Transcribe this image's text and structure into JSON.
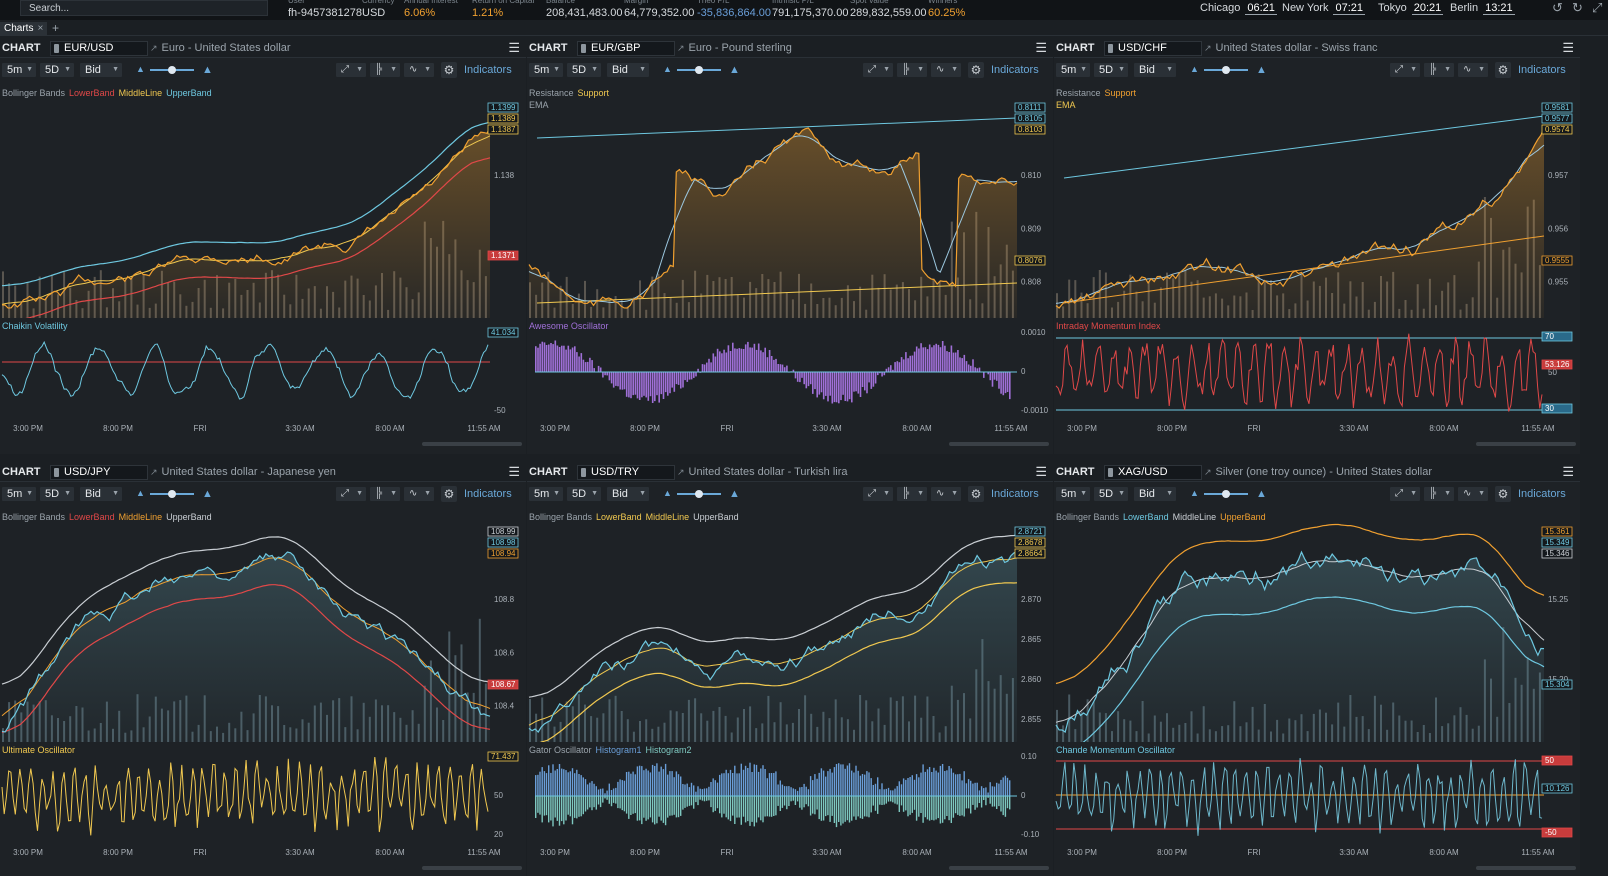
{
  "topbar": {
    "search_placeholder": "Search...",
    "stats": [
      {
        "label": "User",
        "value": "fh-9457381278",
        "color": "white"
      },
      {
        "label": "Currency",
        "value": "USD",
        "color": "white"
      },
      {
        "label": "Annual Interest",
        "value": "6.06%",
        "color": "orange"
      },
      {
        "label": "Return on Capital",
        "value": "1.21%",
        "color": "orange"
      },
      {
        "label": "Balance",
        "value": "208,431,483.00",
        "color": "white"
      },
      {
        "label": "Margin",
        "value": "64,779,352.00",
        "color": "white"
      },
      {
        "label": "Theo P/L",
        "value": "-35,836,864.00",
        "color": "blue"
      },
      {
        "label": "Intrinsic P/L",
        "value": "791,175,370.00",
        "color": "white"
      },
      {
        "label": "Spot Value",
        "value": "289,832,559.00",
        "color": "white"
      },
      {
        "label": "Winners",
        "value": "60.25%",
        "color": "orange"
      }
    ],
    "clocks": [
      {
        "city": "Chicago",
        "time": "06:21"
      },
      {
        "city": "New York",
        "time": "07:21"
      },
      {
        "city": "Tokyo",
        "time": "20:21"
      },
      {
        "city": "Berlin",
        "time": "13:21"
      }
    ],
    "icons": [
      "undo-icon",
      "refresh-icon",
      "expand-icon"
    ]
  },
  "tabs": [
    {
      "label": "Charts"
    }
  ],
  "colors": {
    "orange": "#f0a030",
    "blue": "#6ec8e0",
    "red": "#e04848",
    "yellow": "#f0c850",
    "purple": "#a070d8",
    "green": "#7ec8c0"
  },
  "panels": [
    {
      "chart_label": "CHART",
      "symbol": "EUR/USD",
      "description": "Euro - United States dollar",
      "interval": "5m",
      "range": "5D",
      "price_type": "Bid",
      "indicators_label": "Indicators",
      "main_legend": [
        {
          "text": "Bollinger Bands",
          "color": "#9aa3ab"
        },
        {
          "text": "LowerBand",
          "color": "#e04848"
        },
        {
          "text": "MiddleLine",
          "color": "#f0c850"
        },
        {
          "text": "UpperBand",
          "color": "#6ec8e0"
        }
      ],
      "main_legend2": [],
      "sub_title": "Chaikin Volatility",
      "sub_title_color": "#6ec8e0",
      "main_yticks": [
        "1.138"
      ],
      "main_tags": [
        {
          "text": "1.1399",
          "color": "#6ec8e0"
        },
        {
          "text": "1.1389",
          "color": "#f0c850"
        },
        {
          "text": "1.1387",
          "color": "#f0c850"
        },
        {
          "text": "1.1371",
          "color": "#e04848"
        }
      ],
      "sub_yticks": [
        "0",
        "-50"
      ],
      "sub_tags": [
        {
          "text": "41.034",
          "color": "#6ec8e0"
        }
      ],
      "x_labels": [
        "3:00 PM",
        "8:00 PM",
        "FRI",
        "3:30 AM",
        "8:00 AM",
        "11:55 AM"
      ],
      "style": "bollinger-orange",
      "sub_style": "osc-blue"
    },
    {
      "chart_label": "CHART",
      "symbol": "EUR/GBP",
      "description": "Euro - Pound sterling",
      "interval": "5m",
      "range": "5D",
      "price_type": "Bid",
      "indicators_label": "Indicators",
      "main_legend": [
        {
          "text": "Resistance",
          "color": "#9aa3ab"
        },
        {
          "text": "Support",
          "color": "#f0c850"
        }
      ],
      "main_legend2": [
        {
          "text": "EMA",
          "color": "#9aa3ab"
        }
      ],
      "sub_title": "Awesome Oscillator",
      "sub_title_color": "#a070d8",
      "main_yticks": [
        "0.810",
        "0.809",
        "0.808"
      ],
      "main_tags": [
        {
          "text": "0.8111",
          "color": "#6ec8e0"
        },
        {
          "text": "0.8105",
          "color": "#6ec8e0"
        },
        {
          "text": "0.8103",
          "color": "#f0c850"
        },
        {
          "text": "0.8076",
          "color": "#f0c850"
        }
      ],
      "sub_yticks": [
        "0.0010",
        "0",
        "-0.0010"
      ],
      "sub_tags": [],
      "x_labels": [
        "3:00 PM",
        "8:00 PM",
        "FRI",
        "3:30 AM",
        "8:00 AM",
        "11:55 AM"
      ],
      "style": "resistance-orange",
      "sub_style": "histo-purple"
    },
    {
      "chart_label": "CHART",
      "symbol": "USD/CHF",
      "description": "United States dollar - Swiss franc",
      "interval": "5m",
      "range": "5D",
      "price_type": "Bid",
      "indicators_label": "Indicators",
      "main_legend": [
        {
          "text": "Resistance",
          "color": "#9aa3ab"
        },
        {
          "text": "Support",
          "color": "#f0a030"
        }
      ],
      "main_legend2": [
        {
          "text": "EMA",
          "color": "#f0c850"
        }
      ],
      "sub_title": "Intraday Momentum Index",
      "sub_title_color": "#e04848",
      "main_yticks": [
        "0.957",
        "0.956",
        "0.955"
      ],
      "main_tags": [
        {
          "text": "0.9581",
          "color": "#6ec8e0"
        },
        {
          "text": "0.9577",
          "color": "#6ec8e0"
        },
        {
          "text": "0.9574",
          "color": "#f0c850"
        },
        {
          "text": "0.9555",
          "color": "#f0a030"
        }
      ],
      "sub_yticks": [
        "50"
      ],
      "sub_tags": [
        {
          "text": "70",
          "color": "#6ec8e0"
        },
        {
          "text": "53.126",
          "color": "#e04848"
        },
        {
          "text": "30",
          "color": "#6ec8e0"
        }
      ],
      "x_labels": [
        "3:00 PM",
        "8:00 PM",
        "FRI",
        "3:30 AM",
        "8:00 AM",
        "11:55 AM"
      ],
      "style": "resistance-orange2",
      "sub_style": "osc-red"
    },
    {
      "chart_label": "CHART",
      "symbol": "USD/JPY",
      "description": "United States dollar - Japanese yen",
      "interval": "5m",
      "range": "5D",
      "price_type": "Bid",
      "indicators_label": "Indicators",
      "main_legend": [
        {
          "text": "Bollinger Bands",
          "color": "#9aa3ab"
        },
        {
          "text": "LowerBand",
          "color": "#e04848"
        },
        {
          "text": "MiddleLine",
          "color": "#f0a030"
        },
        {
          "text": "UpperBand",
          "color": "#c9ced3"
        }
      ],
      "main_legend2": [],
      "sub_title": "Ultimate Oscillator",
      "sub_title_color": "#f0c850",
      "main_yticks": [
        "108.8",
        "108.6",
        "108.4"
      ],
      "main_tags": [
        {
          "text": "108.99",
          "color": "#c9ced3"
        },
        {
          "text": "108.98",
          "color": "#6ec8e0"
        },
        {
          "text": "108.94",
          "color": "#f0a030"
        },
        {
          "text": "108.67",
          "color": "#e04848"
        }
      ],
      "sub_yticks": [
        "80",
        "50",
        "20"
      ],
      "sub_tags": [
        {
          "text": "71.437",
          "color": "#f0c850"
        }
      ],
      "x_labels": [
        "3:00 PM",
        "8:00 PM",
        "FRI",
        "3:30 AM",
        "8:00 AM",
        "11:55 AM"
      ],
      "style": "bollinger-teal",
      "sub_style": "osc-yellow"
    },
    {
      "chart_label": "CHART",
      "symbol": "USD/TRY",
      "description": "United States dollar - Turkish lira",
      "interval": "5m",
      "range": "5D",
      "price_type": "Bid",
      "indicators_label": "Indicators",
      "main_legend": [
        {
          "text": "Bollinger Bands",
          "color": "#9aa3ab"
        },
        {
          "text": "LowerBand",
          "color": "#f0c850"
        },
        {
          "text": "MiddleLine",
          "color": "#f0c850"
        },
        {
          "text": "UpperBand",
          "color": "#c9ced3"
        }
      ],
      "main_legend2": [],
      "sub_title": "Gator Oscillator",
      "sub_title_color": "#9aa3ab",
      "sub_title_extra": [
        {
          "text": "Histogram1",
          "color": "#6a9ed8"
        },
        {
          "text": "Histogram2",
          "color": "#7ec8c0"
        }
      ],
      "main_yticks": [
        "2.870",
        "2.865",
        "2.860",
        "2.855"
      ],
      "main_tags": [
        {
          "text": "2.8721",
          "color": "#6ec8e0"
        },
        {
          "text": "2.8678",
          "color": "#f0c850"
        },
        {
          "text": "2.8664",
          "color": "#f0c850"
        }
      ],
      "sub_yticks": [
        "0.10",
        "0",
        "-0.10"
      ],
      "sub_tags": [],
      "x_labels": [
        "3:00 PM",
        "8:00 PM",
        "FRI",
        "3:30 AM",
        "8:00 AM",
        "11:55 AM"
      ],
      "style": "bollinger-teal2",
      "sub_style": "histo-gator"
    },
    {
      "chart_label": "CHART",
      "symbol": "XAG/USD",
      "description": "Silver (one troy ounce) - United States dollar",
      "interval": "5m",
      "range": "5D",
      "price_type": "Bid",
      "indicators_label": "Indicators",
      "main_legend": [
        {
          "text": "Bollinger Bands",
          "color": "#9aa3ab"
        },
        {
          "text": "LowerBand",
          "color": "#6ec8e0"
        },
        {
          "text": "MiddleLine",
          "color": "#c9ced3"
        },
        {
          "text": "UpperBand",
          "color": "#f0a030"
        }
      ],
      "main_legend2": [],
      "sub_title": "Chande Momentum Oscillator",
      "sub_title_color": "#6ec8e0",
      "main_yticks": [
        "15.25",
        "15.20"
      ],
      "main_tags": [
        {
          "text": "15.361",
          "color": "#f0a030"
        },
        {
          "text": "15.349",
          "color": "#6ec8e0"
        },
        {
          "text": "15.346",
          "color": "#c9ced3"
        },
        {
          "text": "15.304",
          "color": "#6ec8e0"
        }
      ],
      "sub_yticks": [],
      "sub_tags": [
        {
          "text": "50",
          "color": "#e04848"
        },
        {
          "text": "10.126",
          "color": "#6ec8e0"
        },
        {
          "text": "-50",
          "color": "#e04848"
        }
      ],
      "x_labels": [
        "3:00 PM",
        "8:00 PM",
        "FRI",
        "3:30 AM",
        "8:00 AM",
        "11:55 AM"
      ],
      "style": "bollinger-teal3",
      "sub_style": "osc-cmo"
    }
  ]
}
